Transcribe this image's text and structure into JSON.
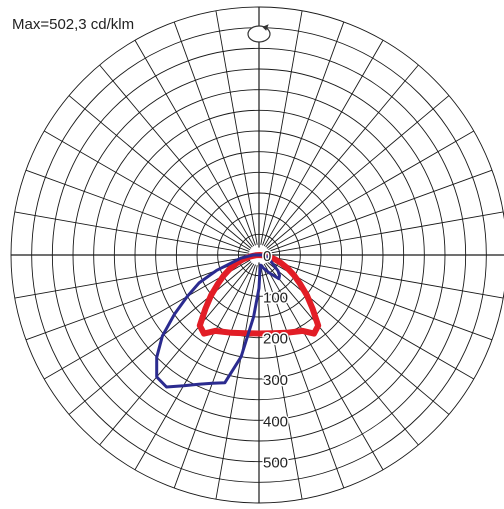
{
  "max_label": "Max=502,3 cd/klm",
  "chart_data": {
    "type": "polar",
    "title": "",
    "radial_tick_labels": [
      "0",
      "100",
      "200",
      "300",
      "400",
      "500"
    ],
    "radial_ticks": [
      0,
      100,
      200,
      300,
      400,
      500
    ],
    "rmax": 600,
    "angle_step_deg": 10,
    "grid": true,
    "series": [
      {
        "color": "#e21d26",
        "points": [
          {
            "angle": 0,
            "r": 190
          },
          {
            "angle": 10,
            "r": 192
          },
          {
            "angle": 20,
            "r": 200
          },
          {
            "angle": 30,
            "r": 212
          },
          {
            "angle": 35,
            "r": 232
          },
          {
            "angle": 40,
            "r": 223
          },
          {
            "angle": 45,
            "r": 183
          },
          {
            "angle": 50,
            "r": 151
          },
          {
            "angle": 55,
            "r": 121
          },
          {
            "angle": 60,
            "r": 98
          },
          {
            "angle": 65,
            "r": 77
          },
          {
            "angle": 70,
            "r": 57
          },
          {
            "angle": 75,
            "r": 40
          },
          {
            "angle": 80,
            "r": 22
          },
          {
            "angle": 85,
            "r": 8
          },
          {
            "angle": 90,
            "r": 2
          },
          {
            "angle": -85,
            "r": 8
          },
          {
            "angle": -80,
            "r": 22
          },
          {
            "angle": -75,
            "r": 40
          },
          {
            "angle": -70,
            "r": 57
          },
          {
            "angle": -65,
            "r": 77
          },
          {
            "angle": -60,
            "r": 98
          },
          {
            "angle": -55,
            "r": 121
          },
          {
            "angle": -50,
            "r": 151
          },
          {
            "angle": -45,
            "r": 183
          },
          {
            "angle": -40,
            "r": 223
          },
          {
            "angle": -35,
            "r": 232
          },
          {
            "angle": -30,
            "r": 212
          },
          {
            "angle": -20,
            "r": 200
          },
          {
            "angle": -10,
            "r": 192
          }
        ]
      },
      {
        "color": "#2b2b8f",
        "points": [
          {
            "angle": 0,
            "r": 80
          },
          {
            "angle": -5,
            "r": 150
          },
          {
            "angle": -10,
            "r": 250
          },
          {
            "angle": -15,
            "r": 320
          },
          {
            "angle": -20,
            "r": 330
          },
          {
            "angle": -25,
            "r": 345
          },
          {
            "angle": -30,
            "r": 365
          },
          {
            "angle": -35,
            "r": 390
          },
          {
            "angle": -40,
            "r": 385
          },
          {
            "angle": -45,
            "r": 350
          },
          {
            "angle": -50,
            "r": 305
          },
          {
            "angle": -55,
            "r": 250
          },
          {
            "angle": -60,
            "r": 200
          },
          {
            "angle": -65,
            "r": 160
          },
          {
            "angle": -70,
            "r": 110
          },
          {
            "angle": -80,
            "r": 45
          },
          {
            "angle": -90,
            "r": 15
          },
          {
            "angle": 90,
            "r": 12
          },
          {
            "angle": 80,
            "r": 18
          },
          {
            "angle": 70,
            "r": 25
          },
          {
            "angle": 60,
            "r": 35
          },
          {
            "angle": 55,
            "r": 45
          },
          {
            "angle": 50,
            "r": 60
          },
          {
            "angle": 45,
            "r": 70
          },
          {
            "angle": 40,
            "r": 75
          },
          {
            "angle": 30,
            "r": 50
          },
          {
            "angle": 20,
            "r": 35
          },
          {
            "angle": 10,
            "r": 25
          },
          {
            "angle": 5,
            "r": 30
          }
        ]
      }
    ]
  }
}
